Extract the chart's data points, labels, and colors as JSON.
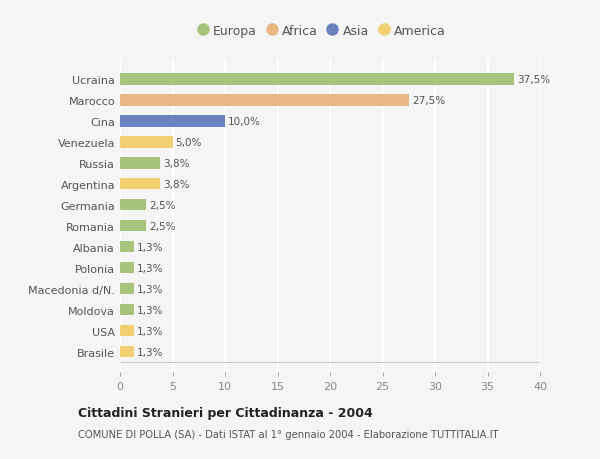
{
  "countries": [
    "Ucraina",
    "Marocco",
    "Cina",
    "Venezuela",
    "Russia",
    "Argentina",
    "Germania",
    "Romania",
    "Albania",
    "Polonia",
    "Macedonia d/N.",
    "Moldova",
    "USA",
    "Brasile"
  ],
  "values": [
    37.5,
    27.5,
    10.0,
    5.0,
    3.8,
    3.8,
    2.5,
    2.5,
    1.3,
    1.3,
    1.3,
    1.3,
    1.3,
    1.3
  ],
  "continents": [
    "Europa",
    "Africa",
    "Asia",
    "America",
    "Europa",
    "America",
    "Europa",
    "Europa",
    "Europa",
    "Europa",
    "Europa",
    "Europa",
    "America",
    "America"
  ],
  "colors": {
    "Europa": "#a8c47c",
    "Africa": "#e8b882",
    "Asia": "#6b82c0",
    "America": "#f0d070"
  },
  "xlim": [
    0,
    40
  ],
  "xticks": [
    0,
    5,
    10,
    15,
    20,
    25,
    30,
    35,
    40
  ],
  "title": "Cittadini Stranieri per Cittadinanza - 2004",
  "subtitle": "COMUNE DI POLLA (SA) - Dati ISTAT al 1° gennaio 2004 - Elaborazione TUTTITALIA.IT",
  "background_color": "#f5f5f5",
  "plot_bg_color": "#f5f5f5",
  "grid_color": "#ffffff",
  "bar_height": 0.55,
  "legend_labels": [
    "Europa",
    "Africa",
    "Asia",
    "America"
  ]
}
